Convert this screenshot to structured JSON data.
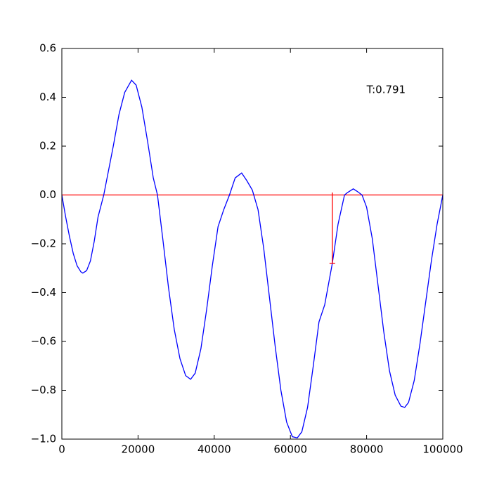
{
  "chart_data": {
    "type": "line",
    "annotation": "T:0.791",
    "annotation_x": 80000,
    "annotation_y": 0.43,
    "x": [
      0,
      1000,
      2000,
      3000,
      4000,
      5000,
      5500,
      6500,
      7500,
      8500,
      9500,
      11000,
      12000,
      13500,
      15000,
      16500,
      18300,
      19500,
      21000,
      22500,
      24000,
      25100,
      26500,
      28000,
      29500,
      31000,
      32500,
      33800,
      35000,
      36500,
      38000,
      39500,
      41000,
      42500,
      44000,
      45500,
      47200,
      48500,
      50000,
      51500,
      53000,
      54500,
      56000,
      57500,
      59000,
      60500,
      61800,
      63000,
      64500,
      66000,
      67500,
      69000,
      71000,
      72500,
      74200,
      75000,
      76500,
      77500,
      78800,
      80000,
      81500,
      83000,
      84500,
      86000,
      87500,
      89000,
      90000,
      91000,
      92500,
      94000,
      95500,
      97000,
      98500,
      100000
    ],
    "series": [
      {
        "color": "#0000ff",
        "values": [
          0,
          -0.09,
          -0.17,
          -0.24,
          -0.29,
          -0.315,
          -0.32,
          -0.31,
          -0.27,
          -0.19,
          -0.09,
          0,
          0.08,
          0.2,
          0.33,
          0.42,
          0.47,
          0.45,
          0.36,
          0.22,
          0.07,
          0,
          -0.18,
          -0.38,
          -0.55,
          -0.67,
          -0.74,
          -0.755,
          -0.73,
          -0.63,
          -0.47,
          -0.29,
          -0.13,
          -0.06,
          0,
          0.07,
          0.09,
          0.06,
          0.02,
          -0.06,
          -0.22,
          -0.42,
          -0.62,
          -0.8,
          -0.93,
          -0.99,
          -0.995,
          -0.97,
          -0.87,
          -0.7,
          -0.52,
          -0.45,
          -0.28,
          -0.12,
          0,
          0.01,
          0.025,
          0.015,
          0,
          -0.05,
          -0.18,
          -0.37,
          -0.56,
          -0.72,
          -0.82,
          -0.865,
          -0.87,
          -0.85,
          -0.76,
          -0.61,
          -0.44,
          -0.27,
          -0.12,
          0
        ]
      }
    ],
    "hline": {
      "y": 0,
      "color": "#ff0000"
    },
    "marker": {
      "x": 71000,
      "low": -0.28,
      "high": 0.01,
      "color": "#ff0000"
    },
    "xlim": [
      0,
      100000
    ],
    "xticks": [
      0,
      20000,
      40000,
      60000,
      80000,
      100000
    ],
    "ylim": [
      -1.0,
      0.6
    ],
    "yticks": [
      {
        "value": -1.0,
        "label": "−1.0"
      },
      {
        "value": -0.8,
        "label": "−0.8"
      },
      {
        "value": -0.6,
        "label": "−0.6"
      },
      {
        "value": -0.4,
        "label": "−0.4"
      },
      {
        "value": -0.2,
        "label": "−0.2"
      },
      {
        "value": 0.0,
        "label": "0.0"
      },
      0.2,
      0.4,
      0.6
    ]
  }
}
